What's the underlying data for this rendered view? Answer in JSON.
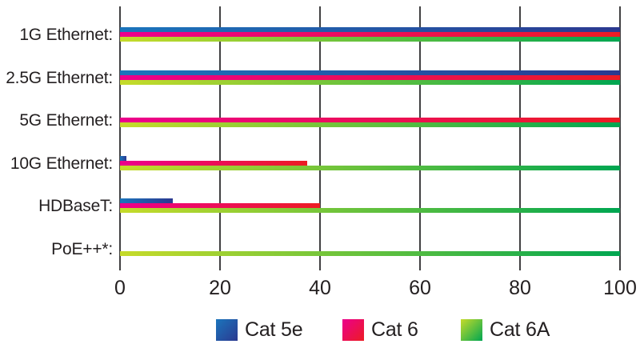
{
  "chart_data": {
    "type": "bar",
    "orientation": "horizontal",
    "title": "",
    "xlabel": "",
    "ylabel": "",
    "categories": [
      "1G Ethernet:",
      "2.5G Ethernet:",
      "5G Ethernet:",
      "10G Ethernet:",
      "HDBaseT:",
      "PoE++*:"
    ],
    "series": [
      {
        "name": "Cat 5e",
        "gradient_start": "#1B75BC",
        "gradient_end": "#2B3990",
        "values": [
          100,
          100,
          0,
          1.3,
          10.5,
          0
        ]
      },
      {
        "name": "Cat 6",
        "gradient_start": "#EC008C",
        "gradient_end": "#EC1C24",
        "values": [
          100,
          100,
          100,
          37.5,
          40,
          0
        ]
      },
      {
        "name": "Cat 6A",
        "gradient_start": "#C6DB2A",
        "gradient_end": "#00A651",
        "values": [
          100,
          100,
          100,
          100,
          100,
          100
        ]
      }
    ],
    "xticks": [
      "0",
      "20",
      "40",
      "60",
      "80",
      "100"
    ],
    "xlim": [
      0,
      100
    ],
    "grid": "vertical-gridlines",
    "legend_position": "bottom"
  },
  "colors": {
    "text": "#231F20",
    "gridline": "#414042",
    "background": "#FFFFFF"
  }
}
